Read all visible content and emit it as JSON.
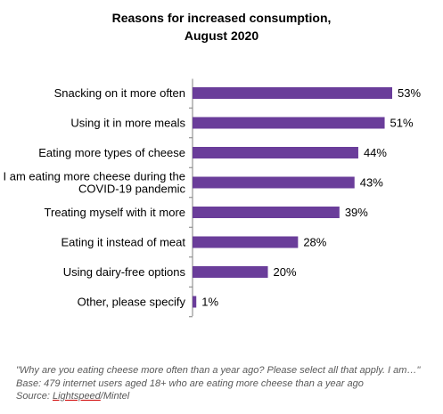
{
  "title_line1": "Reasons for increased consumption,",
  "title_line2": "August 2020",
  "chart_data": {
    "type": "bar",
    "orientation": "horizontal",
    "categories": [
      [
        "Snacking on it more often"
      ],
      [
        "Using it in more meals"
      ],
      [
        "Eating more types of cheese"
      ],
      [
        "I am eating more cheese during the",
        "COVID-19 pandemic"
      ],
      [
        "Treating myself with it more"
      ],
      [
        "Eating it instead of meat"
      ],
      [
        "Using dairy-free options"
      ],
      [
        "Other, please specify"
      ]
    ],
    "values": [
      53,
      51,
      44,
      43,
      39,
      28,
      20,
      1
    ],
    "value_labels": [
      "53%",
      "51%",
      "44%",
      "43%",
      "39%",
      "28%",
      "20%",
      "1%"
    ],
    "unit": "%",
    "xlim": [
      0,
      53
    ],
    "bar_color": "#6a3d9a",
    "grid": false,
    "legend": "none"
  },
  "footnote": {
    "line1": "\"Why are you eating cheese more often than a year ago? Please select all that apply. I am…\"",
    "line2": "Base: 479 internet users aged 18+ who are eating more cheese than a year ago",
    "source_prefix": "Source: ",
    "source_link": "Lightspeed",
    "source_suffix": "/Mintel"
  }
}
